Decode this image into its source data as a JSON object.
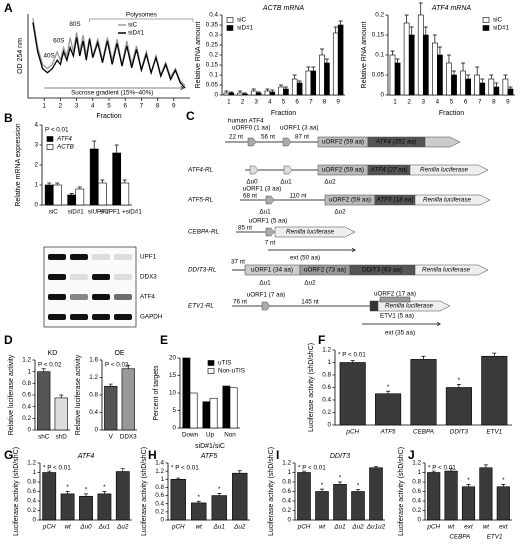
{
  "chart_data": [
    {
      "type": "line",
      "ylabel": "OD 254 nm",
      "xlabel": "Fraction",
      "annotations": [
        "40S",
        "60S",
        "80S",
        "Polysomes",
        "Sucrose gradient (15%–40%)"
      ],
      "x": [
        0.3,
        0.6,
        0.9,
        1.2,
        1.5,
        1.8,
        2.0,
        2.2,
        2.4,
        2.6,
        2.8,
        3.0,
        3.2,
        3.4,
        3.6,
        3.8,
        4.0,
        4.3,
        4.6,
        4.9,
        5.2,
        5.5,
        5.8,
        6.1,
        6.4,
        6.7,
        7.0,
        7.3,
        7.6,
        7.9,
        8.2,
        8.5,
        8.8,
        9.1,
        9.4,
        9.7
      ],
      "series": [
        {
          "name": "siC",
          "color": "#9a9a9a",
          "values": [
            0.95,
            0.6,
            0.4,
            0.35,
            0.4,
            0.55,
            0.45,
            0.6,
            0.5,
            0.72,
            0.55,
            0.78,
            0.55,
            0.75,
            0.5,
            0.72,
            0.5,
            0.7,
            0.45,
            0.72,
            0.45,
            0.7,
            0.4,
            0.68,
            0.4,
            0.62,
            0.35,
            0.55,
            0.3,
            0.5,
            0.28,
            0.42,
            0.25,
            0.35,
            0.2,
            0.15
          ]
        },
        {
          "name": "siD#1",
          "color": "#000000",
          "values": [
            0.9,
            0.55,
            0.35,
            0.3,
            0.35,
            0.45,
            0.4,
            0.55,
            0.45,
            0.6,
            0.5,
            0.72,
            0.5,
            0.68,
            0.45,
            0.7,
            0.48,
            0.66,
            0.42,
            0.68,
            0.4,
            0.65,
            0.38,
            0.62,
            0.36,
            0.58,
            0.33,
            0.52,
            0.3,
            0.48,
            0.26,
            0.4,
            0.22,
            0.33,
            0.18,
            0.12
          ]
        }
      ],
      "xlim": [
        0,
        10
      ],
      "xticks": [
        1,
        2,
        3,
        4,
        5,
        6,
        7,
        8,
        9
      ],
      "ylim": [
        0,
        1
      ],
      "legend": "upper left"
    },
    {
      "type": "bar",
      "title": "ACTB mRNA",
      "ylabel": "Relative RNA amount",
      "xlabel": "Fraction",
      "categories": [
        "1",
        "2",
        "3",
        "4",
        "5",
        "6",
        "7",
        "8",
        "9"
      ],
      "series": [
        {
          "name": "siC",
          "color": "#ffffff",
          "values": [
            0.01,
            0.01,
            0.02,
            0.02,
            0.04,
            0.08,
            0.12,
            0.2,
            0.31
          ],
          "errors": [
            0.01,
            0.01,
            0.01,
            0.01,
            0.01,
            0.02,
            0.02,
            0.03,
            0.03
          ]
        },
        {
          "name": "siD#1",
          "color": "#000000",
          "values": [
            0.01,
            0.005,
            0.01,
            0.015,
            0.03,
            0.06,
            0.12,
            0.16,
            0.35
          ],
          "errors": [
            0.005,
            0.005,
            0.005,
            0.01,
            0.01,
            0.01,
            0.02,
            0.02,
            0.02
          ]
        }
      ],
      "ylim": [
        0,
        0.4
      ],
      "yticks": [
        0,
        0.05,
        0.1,
        0.15,
        0.2,
        0.25,
        0.3,
        0.35,
        0.4
      ],
      "legend": "upper left"
    },
    {
      "type": "bar",
      "title": "ATF4 mRNA",
      "ylabel": "Relative RNA amount",
      "xlabel": "Fraction",
      "categories": [
        "1",
        "2",
        "3",
        "4",
        "5",
        "6",
        "7",
        "8",
        "9"
      ],
      "series": [
        {
          "name": "siC",
          "color": "#ffffff",
          "values": [
            0.1,
            0.18,
            0.2,
            0.13,
            0.08,
            0.06,
            0.05,
            0.04,
            0.04
          ],
          "errors": [
            0.01,
            0.02,
            0.03,
            0.02,
            0.02,
            0.02,
            0.02,
            0.01,
            0.01
          ]
        },
        {
          "name": "siD#1",
          "color": "#000000",
          "values": [
            0.08,
            0.15,
            0.15,
            0.1,
            0.05,
            0.04,
            0.03,
            0.02,
            0.015
          ],
          "errors": [
            0.01,
            0.02,
            0.02,
            0.02,
            0.01,
            0.01,
            0.01,
            0.01,
            0.005
          ]
        }
      ],
      "ylim": [
        0,
        0.2
      ],
      "yticks": [
        0,
        0.05,
        0.1,
        0.15,
        0.2
      ],
      "legend": "upper right"
    },
    {
      "type": "bar",
      "ylabel": "Relative mRNA expression",
      "annotation": "P < 0.01",
      "categories": [
        "siC",
        "siD#1",
        "siUPF1",
        "siUPF1 +siD#1"
      ],
      "series": [
        {
          "name": "ATF4",
          "color": "#000000",
          "values": [
            1,
            0.5,
            2.8,
            2.6
          ],
          "errors": [
            0.1,
            0.08,
            0.4,
            0.4
          ]
        },
        {
          "name": "ACTB",
          "color": "#ffffff",
          "values": [
            1,
            0.8,
            1.1,
            1.1
          ],
          "errors": [
            0.1,
            0.1,
            0.15,
            0.15
          ]
        }
      ],
      "ylim": [
        0,
        4
      ],
      "yticks": [
        0,
        1,
        2,
        3,
        4
      ],
      "legend": "upper left"
    },
    {
      "type": "bar",
      "title": "KD",
      "ylabel": "Relative luciferase activity",
      "annotation": "P < 0.02",
      "categories": [
        "shC",
        "shD"
      ],
      "values": [
        1,
        0.55
      ],
      "errors": [
        0.05,
        0.05
      ],
      "colors": [
        "#555555",
        "#dddddd"
      ],
      "ylim": [
        0,
        1.2
      ],
      "yticks": [
        0,
        0.2,
        0.4,
        0.6,
        0.8,
        1,
        1.2
      ]
    },
    {
      "type": "bar",
      "title": "OE",
      "ylabel": "Relative luciferase activity",
      "annotation": "P < 0.02",
      "categories": [
        "V",
        "DDX3"
      ],
      "values": [
        1,
        1.4
      ],
      "errors": [
        0.05,
        0.08
      ],
      "colors": [
        "#555555",
        "#999999"
      ],
      "ylim": [
        0,
        1.6
      ],
      "yticks": [
        0,
        0.4,
        0.8,
        1.2,
        1.6
      ]
    },
    {
      "type": "bar",
      "ylabel": "Percent of targets",
      "xlabel": "siD#1/siC",
      "categories": [
        "Down",
        "Up",
        "Non"
      ],
      "series": [
        {
          "name": "uTIS",
          "color": "#000000",
          "values": [
            20,
            7.5,
            12
          ]
        },
        {
          "name": "Non-uTIS",
          "color": "#ffffff",
          "values": [
            10,
            8.5,
            11.5
          ]
        }
      ],
      "ylim": [
        0,
        20
      ],
      "yticks": [
        0,
        5,
        10,
        15,
        20
      ],
      "legend": "upper right"
    },
    {
      "type": "bar",
      "ylabel": "Luciferase activity (shD/shC)",
      "annotation": "* P < 0.01",
      "categories": [
        "pCH",
        "ATF5",
        "CEBPA",
        "DDIT3",
        "ETV1"
      ],
      "values": [
        1,
        0.5,
        1.05,
        0.6,
        1.1
      ],
      "errors": [
        0.03,
        0.04,
        0.05,
        0.05,
        0.05
      ],
      "significance": [
        null,
        "*",
        null,
        "*",
        null
      ],
      "color": "#3a3a3a",
      "ylim": [
        0,
        1.2
      ],
      "yticks": [
        0,
        0.2,
        0.4,
        0.6,
        0.8,
        1,
        1.2
      ]
    },
    {
      "type": "bar",
      "title": "ATF4",
      "ylabel": "Luciferase activity (shD/shC)",
      "annotation": "* P < 0.01",
      "categories": [
        "pCH",
        "wt",
        "Δu0",
        "Δu1",
        "Δu2"
      ],
      "values": [
        1,
        0.55,
        0.5,
        0.55,
        1.02
      ],
      "errors": [
        0.03,
        0.05,
        0.05,
        0.05,
        0.06
      ],
      "significance": [
        null,
        "*",
        "*",
        "*",
        null
      ],
      "color": "#3a3a3a",
      "ylim": [
        0,
        1.2
      ],
      "yticks": [
        0,
        0.2,
        0.4,
        0.6,
        0.8,
        1,
        1.2
      ]
    },
    {
      "type": "bar",
      "title": "ATF5",
      "ylabel": "Luciferase activity (shD/shC)",
      "annotation": "* P < 0.01",
      "categories": [
        "pCH",
        "wt",
        "Δu1",
        "Δu2"
      ],
      "values": [
        1,
        0.42,
        0.6,
        1.15
      ],
      "errors": [
        0.03,
        0.04,
        0.05,
        0.06
      ],
      "significance": [
        null,
        "*",
        "*",
        null
      ],
      "color": "#3a3a3a",
      "ylim": [
        0,
        1.4
      ],
      "yticks": [
        0,
        0.2,
        0.4,
        0.6,
        0.8,
        1,
        1.2,
        1.4
      ]
    },
    {
      "type": "bar",
      "title": "DDIT3",
      "ylabel": "Luciferase activity (shD/shC)",
      "annotation": "* P < 0.01",
      "categories": [
        "pCH",
        "wt",
        "Δu1",
        "Δu2",
        "Δu1u2"
      ],
      "values": [
        1,
        0.6,
        0.75,
        0.6,
        1.1
      ],
      "errors": [
        0.03,
        0.05,
        0.05,
        0.04,
        0.03
      ],
      "significance": [
        null,
        "*",
        "*",
        "*",
        null
      ],
      "color": "#3a3a3a",
      "ylim": [
        0,
        1.2
      ],
      "yticks": [
        0,
        0.2,
        0.4,
        0.6,
        0.8,
        1,
        1.2
      ]
    },
    {
      "type": "bar",
      "ylabel": "Luciferase activity (shD/shC)",
      "annotation": "* P < 0.01",
      "categories": [
        "pCH",
        "wt",
        "ext",
        "wt",
        "ext"
      ],
      "group_labels": [
        "CEBPA",
        "ETV1"
      ],
      "values": [
        1,
        1.03,
        0.7,
        1.1,
        0.7
      ],
      "errors": [
        0.03,
        0.05,
        0.05,
        0.06,
        0.05
      ],
      "significance": [
        null,
        null,
        "*",
        null,
        "*"
      ],
      "color": "#3a3a3a",
      "ylim": [
        0,
        1.2
      ],
      "yticks": [
        0,
        0.2,
        0.4,
        0.6,
        0.8,
        1,
        1.2
      ]
    }
  ],
  "panel_labels": [
    "A",
    "B",
    "C",
    "D",
    "E",
    "F",
    "G",
    "H",
    "I",
    "J"
  ],
  "blot": {
    "labels": [
      "UPF1",
      "DDX3",
      "ATF4",
      "GAPDH"
    ]
  },
  "diagram": {
    "gene": "human ATF4",
    "top": [
      "uORF0 (1 aa)",
      "uORF1 (3 aa)",
      "22 nt",
      "56 nt",
      "87 nt",
      "uORF2 (59 aa)",
      "ATF4 (351 aa)"
    ],
    "rows": [
      {
        "name": "ATF4-RL",
        "labels": [
          "uORF2 (59 aa)",
          "ATF4 (27 aa)",
          "Renilla luciferase",
          "Δu0",
          "Δu1",
          "Δu2"
        ]
      },
      {
        "name": "ATF5-RL",
        "labels": [
          "uORF1 (3 aa)",
          "68 nt",
          "110 nt",
          "uORF2 (59 aa)",
          "ATF5 (18 aa)",
          "Renilla luciferase",
          "Δu1",
          "Δu2"
        ]
      },
      {
        "name": "CEBPA-RL",
        "labels": [
          "uORF1 (5 aa)",
          "85 nt",
          "7 nt",
          "Renilla luciferase",
          "ext (50 aa)"
        ]
      },
      {
        "name": "DDIT3-RL",
        "labels": [
          "37 nt",
          "uORF1 (34 aa)",
          "uORF2 (73 aa)",
          "DDIT3 (63 aa)",
          "Renilla luciferase",
          "Δu1",
          "Δu2"
        ]
      },
      {
        "name": "ETV1-RL",
        "labels": [
          "uORF1 (7 aa)",
          "76 nt",
          "145 nt",
          "uORF2 (17 aa)",
          "ETV1 (5 aa)",
          "Renilla luciferase",
          "ext (35 aa)"
        ]
      }
    ]
  }
}
